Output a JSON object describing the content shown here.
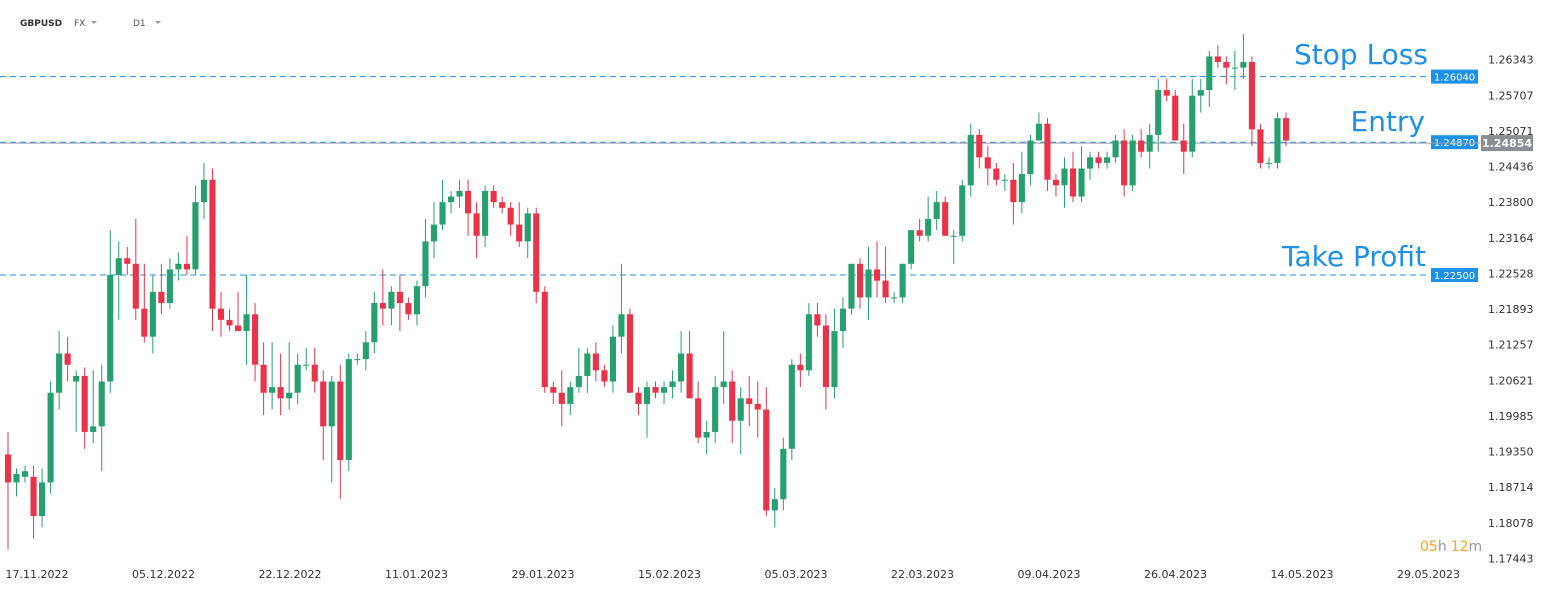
{
  "header": {
    "symbol": "GBPUSD",
    "market": "FX",
    "timeframe": "D1"
  },
  "timer": {
    "hours": "05",
    "h_unit": "h",
    "minutes": "12",
    "m_unit": "m"
  },
  "annotations": {
    "stop_loss": "Stop Loss",
    "entry": "Entry",
    "take_profit": "Take Profit"
  },
  "colors": {
    "bull": "#27a06f",
    "bear": "#e8344a",
    "level_line": "#1e90e8",
    "tag_bg": "#1e90e8",
    "current_tag_bg": "#8a8f96",
    "timer": "#f5a623"
  },
  "chart_data": {
    "type": "candlestick",
    "y_ticks": [
      "1.26343",
      "1.25707",
      "1.25071",
      "1.24436",
      "1.23800",
      "1.23164",
      "1.22528",
      "1.21893",
      "1.21257",
      "1.20621",
      "1.19985",
      "1.19350",
      "1.18714",
      "1.18078",
      "1.17443"
    ],
    "x_ticks": [
      "17.11.2022",
      "05.12.2022",
      "22.12.2022",
      "11.01.2023",
      "29.01.2023",
      "15.02.2023",
      "05.03.2023",
      "22.03.2023",
      "09.04.2023",
      "26.04.2023",
      "14.05.2023",
      "29.05.2023"
    ],
    "ylim": [
      1.1738,
      1.2705
    ],
    "levels": [
      {
        "name": "Stop Loss",
        "label": "1.26040",
        "value": 1.2604
      },
      {
        "name": "Entry",
        "label": "1.24870",
        "value": 1.2487
      },
      {
        "name": "Take Profit",
        "label": "1.22500",
        "value": 1.225
      }
    ],
    "current_price": {
      "label": "1.24854",
      "value": 1.24854
    },
    "candles": [
      [
        1.193,
        1.197,
        1.176,
        1.188
      ],
      [
        1.188,
        1.1905,
        1.1855,
        1.1895
      ],
      [
        1.189,
        1.191,
        1.188,
        1.19
      ],
      [
        1.189,
        1.191,
        1.178,
        1.182
      ],
      [
        1.182,
        1.1905,
        1.18,
        1.188
      ],
      [
        1.188,
        1.206,
        1.186,
        1.204
      ],
      [
        1.204,
        1.215,
        1.201,
        1.211
      ],
      [
        1.211,
        1.214,
        1.206,
        1.209
      ],
      [
        1.206,
        1.208,
        1.197,
        1.207
      ],
      [
        1.207,
        1.2085,
        1.194,
        1.197
      ],
      [
        1.197,
        1.208,
        1.195,
        1.198
      ],
      [
        1.198,
        1.209,
        1.19,
        1.206
      ],
      [
        1.206,
        1.233,
        1.204,
        1.225
      ],
      [
        1.225,
        1.231,
        1.217,
        1.228
      ],
      [
        1.228,
        1.23,
        1.225,
        1.227
      ],
      [
        1.227,
        1.235,
        1.217,
        1.219
      ],
      [
        1.219,
        1.227,
        1.213,
        1.214
      ],
      [
        1.214,
        1.225,
        1.211,
        1.222
      ],
      [
        1.222,
        1.227,
        1.218,
        1.22
      ],
      [
        1.22,
        1.228,
        1.219,
        1.226
      ],
      [
        1.226,
        1.229,
        1.224,
        1.227
      ],
      [
        1.227,
        1.232,
        1.225,
        1.226
      ],
      [
        1.226,
        1.241,
        1.225,
        1.238
      ],
      [
        1.238,
        1.245,
        1.235,
        1.242
      ],
      [
        1.242,
        1.244,
        1.215,
        1.219
      ],
      [
        1.219,
        1.222,
        1.214,
        1.217
      ],
      [
        1.217,
        1.219,
        1.215,
        1.216
      ],
      [
        1.216,
        1.222,
        1.215,
        1.215
      ],
      [
        1.215,
        1.225,
        1.209,
        1.218
      ],
      [
        1.218,
        1.22,
        1.206,
        1.209
      ],
      [
        1.209,
        1.213,
        1.2,
        1.204
      ],
      [
        1.204,
        1.213,
        1.201,
        1.205
      ],
      [
        1.205,
        1.211,
        1.2,
        1.203
      ],
      [
        1.203,
        1.213,
        1.201,
        1.204
      ],
      [
        1.204,
        1.211,
        1.202,
        1.209
      ],
      [
        1.209,
        1.212,
        1.208,
        1.209
      ],
      [
        1.209,
        1.212,
        1.204,
        1.206
      ],
      [
        1.206,
        1.208,
        1.192,
        1.198
      ],
      [
        1.198,
        1.207,
        1.188,
        1.206
      ],
      [
        1.206,
        1.209,
        1.185,
        1.192
      ],
      [
        1.192,
        1.211,
        1.19,
        1.21
      ],
      [
        1.21,
        1.211,
        1.209,
        1.21
      ],
      [
        1.21,
        1.215,
        1.208,
        1.213
      ],
      [
        1.213,
        1.222,
        1.211,
        1.22
      ],
      [
        1.22,
        1.226,
        1.216,
        1.219
      ],
      [
        1.219,
        1.223,
        1.216,
        1.222
      ],
      [
        1.222,
        1.225,
        1.215,
        1.22
      ],
      [
        1.22,
        1.221,
        1.217,
        1.218
      ],
      [
        1.218,
        1.224,
        1.216,
        1.223
      ],
      [
        1.223,
        1.235,
        1.221,
        1.231
      ],
      [
        1.231,
        1.238,
        1.228,
        1.234
      ],
      [
        1.234,
        1.242,
        1.233,
        1.238
      ],
      [
        1.238,
        1.24,
        1.236,
        1.239
      ],
      [
        1.239,
        1.242,
        1.237,
        1.24
      ],
      [
        1.24,
        1.242,
        1.232,
        1.236
      ],
      [
        1.236,
        1.238,
        1.228,
        1.232
      ],
      [
        1.232,
        1.241,
        1.23,
        1.24
      ],
      [
        1.24,
        1.241,
        1.237,
        1.238
      ],
      [
        1.238,
        1.239,
        1.236,
        1.237
      ],
      [
        1.237,
        1.238,
        1.232,
        1.234
      ],
      [
        1.234,
        1.238,
        1.23,
        1.231
      ],
      [
        1.231,
        1.237,
        1.228,
        1.236
      ],
      [
        1.236,
        1.237,
        1.22,
        1.222
      ],
      [
        1.222,
        1.223,
        1.204,
        1.205
      ],
      [
        1.205,
        1.206,
        1.202,
        1.204
      ],
      [
        1.204,
        1.208,
        1.198,
        1.202
      ],
      [
        1.202,
        1.206,
        1.2,
        1.205
      ],
      [
        1.205,
        1.212,
        1.204,
        1.207
      ],
      [
        1.207,
        1.212,
        1.204,
        1.211
      ],
      [
        1.211,
        1.213,
        1.206,
        1.208
      ],
      [
        1.208,
        1.209,
        1.205,
        1.206
      ],
      [
        1.206,
        1.216,
        1.204,
        1.214
      ],
      [
        1.214,
        1.227,
        1.211,
        1.218
      ],
      [
        1.218,
        1.219,
        1.204,
        1.204
      ],
      [
        1.204,
        1.205,
        1.2,
        1.202
      ],
      [
        1.202,
        1.206,
        1.196,
        1.205
      ],
      [
        1.205,
        1.206,
        1.203,
        1.204
      ],
      [
        1.204,
        1.206,
        1.202,
        1.205
      ],
      [
        1.205,
        1.208,
        1.203,
        1.206
      ],
      [
        1.206,
        1.215,
        1.204,
        1.211
      ],
      [
        1.211,
        1.215,
        1.203,
        1.203
      ],
      [
        1.203,
        1.206,
        1.195,
        1.196
      ],
      [
        1.196,
        1.199,
        1.193,
        1.197
      ],
      [
        1.197,
        1.207,
        1.195,
        1.205
      ],
      [
        1.205,
        1.215,
        1.202,
        1.206
      ],
      [
        1.206,
        1.208,
        1.195,
        1.199
      ],
      [
        1.199,
        1.205,
        1.193,
        1.203
      ],
      [
        1.203,
        1.207,
        1.198,
        1.202
      ],
      [
        1.202,
        1.206,
        1.196,
        1.201
      ],
      [
        1.201,
        1.205,
        1.182,
        1.183
      ],
      [
        1.183,
        1.187,
        1.18,
        1.185
      ],
      [
        1.185,
        1.196,
        1.183,
        1.194
      ],
      [
        1.194,
        1.21,
        1.192,
        1.209
      ],
      [
        1.209,
        1.211,
        1.205,
        1.208
      ],
      [
        1.208,
        1.22,
        1.207,
        1.218
      ],
      [
        1.218,
        1.22,
        1.214,
        1.216
      ],
      [
        1.216,
        1.218,
        1.201,
        1.205
      ],
      [
        1.205,
        1.219,
        1.203,
        1.215
      ],
      [
        1.215,
        1.221,
        1.212,
        1.219
      ],
      [
        1.219,
        1.227,
        1.218,
        1.227
      ],
      [
        1.227,
        1.228,
        1.219,
        1.221
      ],
      [
        1.221,
        1.23,
        1.217,
        1.226
      ],
      [
        1.226,
        1.231,
        1.221,
        1.224
      ],
      [
        1.224,
        1.23,
        1.22,
        1.221
      ],
      [
        1.221,
        1.222,
        1.22,
        1.221
      ],
      [
        1.221,
        1.227,
        1.22,
        1.227
      ],
      [
        1.227,
        1.233,
        1.226,
        1.233
      ],
      [
        1.233,
        1.235,
        1.231,
        1.232
      ],
      [
        1.232,
        1.239,
        1.231,
        1.235
      ],
      [
        1.235,
        1.24,
        1.233,
        1.238
      ],
      [
        1.238,
        1.239,
        1.232,
        1.232
      ],
      [
        1.232,
        1.233,
        1.227,
        1.232
      ],
      [
        1.232,
        1.242,
        1.231,
        1.241
      ],
      [
        1.241,
        1.252,
        1.239,
        1.25
      ],
      [
        1.25,
        1.251,
        1.244,
        1.246
      ],
      [
        1.246,
        1.248,
        1.241,
        1.244
      ],
      [
        1.244,
        1.245,
        1.241,
        1.242
      ],
      [
        1.242,
        1.243,
        1.24,
        1.242
      ],
      [
        1.242,
        1.245,
        1.234,
        1.238
      ],
      [
        1.238,
        1.247,
        1.236,
        1.243
      ],
      [
        1.243,
        1.25,
        1.241,
        1.249
      ],
      [
        1.249,
        1.254,
        1.249,
        1.252
      ],
      [
        1.252,
        1.253,
        1.24,
        1.242
      ],
      [
        1.242,
        1.243,
        1.239,
        1.241
      ],
      [
        1.241,
        1.246,
        1.237,
        1.244
      ],
      [
        1.244,
        1.247,
        1.238,
        1.239
      ],
      [
        1.239,
        1.248,
        1.238,
        1.244
      ],
      [
        1.244,
        1.247,
        1.242,
        1.246
      ],
      [
        1.246,
        1.247,
        1.244,
        1.245
      ],
      [
        1.245,
        1.247,
        1.244,
        1.246
      ],
      [
        1.246,
        1.25,
        1.245,
        1.249
      ],
      [
        1.249,
        1.251,
        1.239,
        1.241
      ],
      [
        1.241,
        1.25,
        1.24,
        1.249
      ],
      [
        1.249,
        1.251,
        1.246,
        1.247
      ],
      [
        1.247,
        1.252,
        1.244,
        1.25
      ],
      [
        1.25,
        1.26,
        1.247,
        1.258
      ],
      [
        1.258,
        1.26,
        1.256,
        1.257
      ],
      [
        1.257,
        1.258,
        1.249,
        1.249
      ],
      [
        1.249,
        1.252,
        1.243,
        1.247
      ],
      [
        1.247,
        1.26,
        1.246,
        1.257
      ],
      [
        1.257,
        1.26,
        1.254,
        1.258
      ],
      [
        1.258,
        1.265,
        1.255,
        1.264
      ],
      [
        1.264,
        1.266,
        1.262,
        1.263
      ],
      [
        1.263,
        1.264,
        1.259,
        1.262
      ],
      [
        1.262,
        1.265,
        1.258,
        1.262
      ],
      [
        1.262,
        1.268,
        1.26,
        1.263
      ],
      [
        1.263,
        1.264,
        1.248,
        1.251
      ],
      [
        1.251,
        1.252,
        1.244,
        1.245
      ],
      [
        1.245,
        1.246,
        1.244,
        1.245
      ],
      [
        1.245,
        1.254,
        1.244,
        1.253
      ],
      [
        1.253,
        1.254,
        1.248,
        1.249
      ]
    ]
  }
}
